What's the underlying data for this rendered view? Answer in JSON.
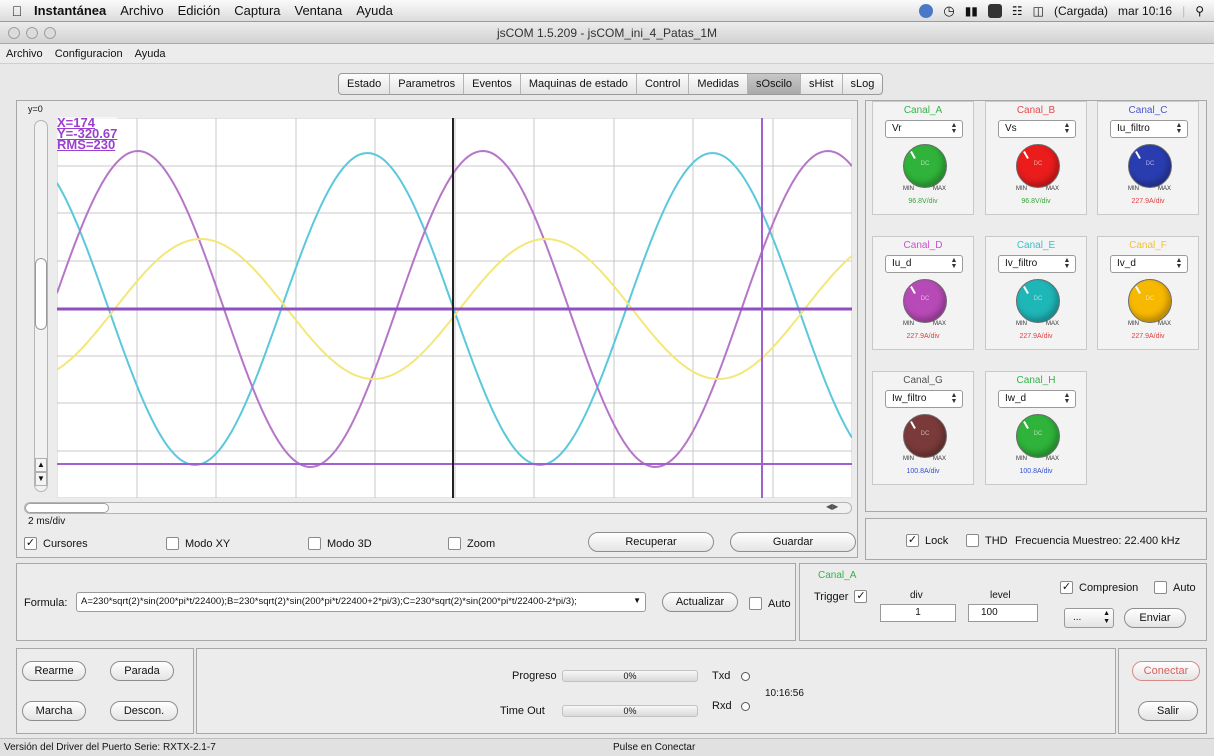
{
  "menubar": {
    "app": "Instantánea",
    "items": [
      "Archivo",
      "Edición",
      "Captura",
      "Ventana",
      "Ayuda"
    ],
    "battery": "(Cargada)",
    "clock": "mar 10:16"
  },
  "window": {
    "title": "jsCOM 1.5.209 - jsCOM_ini_4_Patas_1M"
  },
  "appmenu": [
    "Archivo",
    "Configuracion",
    "Ayuda"
  ],
  "tabs": [
    "Estado",
    "Parametros",
    "Eventos",
    "Maquinas de estado",
    "Control",
    "Medidas",
    "sOscilo",
    "sHist",
    "sLog"
  ],
  "active_tab": "sOscilo",
  "scope": {
    "y_label": "y=0",
    "cursor_x": "X=174",
    "cursor_y": "Y=-320.67",
    "cursor_rms": "RMS=230",
    "timebase": "2 ms/div",
    "checks": {
      "cursores": "Cursores",
      "modo_xy": "Modo XY",
      "modo_3d": "Modo 3D",
      "zoom": "Zoom"
    },
    "recuperar": "Recuperar",
    "guardar": "Guardar",
    "trace_colors": {
      "A": "#5bc8dc",
      "B": "#b676c8",
      "C": "#f4e77a",
      "hline": "#9b59c4"
    }
  },
  "channels": [
    {
      "name": "Canal_A",
      "name_color": "#34b34a",
      "signal": "Vr",
      "knob": "#2fb33a",
      "scale": "96.8V/div",
      "scale_color": "#3aa33a"
    },
    {
      "name": "Canal_B",
      "name_color": "#e84a4a",
      "signal": "Vs",
      "knob": "#ea1c1c",
      "scale": "96.8V/div",
      "scale_color": "#3aa33a"
    },
    {
      "name": "Canal_C",
      "name_color": "#4a55d6",
      "signal": "Iu_filtro",
      "knob": "#2a3db0",
      "scale": "227.9A/div",
      "scale_color": "#e04040"
    },
    {
      "name": "Canal_D",
      "name_color": "#cf4ecf",
      "signal": "Iu_d",
      "knob": "#b84ab8",
      "scale": "227.9A/div",
      "scale_color": "#e04040"
    },
    {
      "name": "Canal_E",
      "name_color": "#3ac0c8",
      "signal": "Iv_filtro",
      "knob": "#1fb6b8",
      "scale": "227.9A/div",
      "scale_color": "#e04040"
    },
    {
      "name": "Canal_F",
      "name_color": "#f2c030",
      "signal": "Iv_d",
      "knob": "#f7b800",
      "scale": "227.9A/div",
      "scale_color": "#e04040"
    },
    {
      "name": "Canal_G",
      "name_color": "#555555",
      "signal": "Iw_filtro",
      "knob": "#7a3a3a",
      "scale": "100.8A/div",
      "scale_color": "#3050d0"
    },
    {
      "name": "Canal_H",
      "name_color": "#34b34a",
      "signal": "Iw_d",
      "knob": "#2fb33a",
      "scale": "100.8A/div",
      "scale_color": "#3050d0"
    }
  ],
  "knob": {
    "min": "MIN",
    "max": "MAX",
    "center": "DC"
  },
  "lock": {
    "lock": "Lock",
    "thd": "THD",
    "freq": "Frecuencia Muestreo: 22.400 kHz"
  },
  "formula": {
    "label": "Formula:",
    "value": "A=230*sqrt(2)*sin(200*pi*t/22400);B=230*sqrt(2)*sin(200*pi*t/22400+2*pi/3);C=230*sqrt(2)*sin(200*pi*t/22400-2*pi/3);",
    "actualizar": "Actualizar",
    "auto": "Auto"
  },
  "trigger": {
    "channel": "Canal_A",
    "label": "Trigger",
    "div_label": "div",
    "div_value": "1",
    "level_label": "level",
    "level_value": "100",
    "compresion": "Compresion",
    "auto": "Auto",
    "select_value": "...",
    "enviar": "Enviar"
  },
  "controls": {
    "rearme": "Rearme",
    "parada": "Parada",
    "marcha": "Marcha",
    "descon": "Descon."
  },
  "progress": {
    "progreso_label": "Progreso",
    "progreso_value": "0%",
    "timeout_label": "Time Out",
    "timeout_value": "0%",
    "txd": "Txd",
    "rxd": "Rxd",
    "time": "10:16:56"
  },
  "right_buttons": {
    "conectar": "Conectar",
    "salir": "Salir"
  },
  "status": {
    "left": "Versión del Driver del Puerto Serie: RXTX-2.1-7",
    "center": "Pulse en Conectar"
  }
}
